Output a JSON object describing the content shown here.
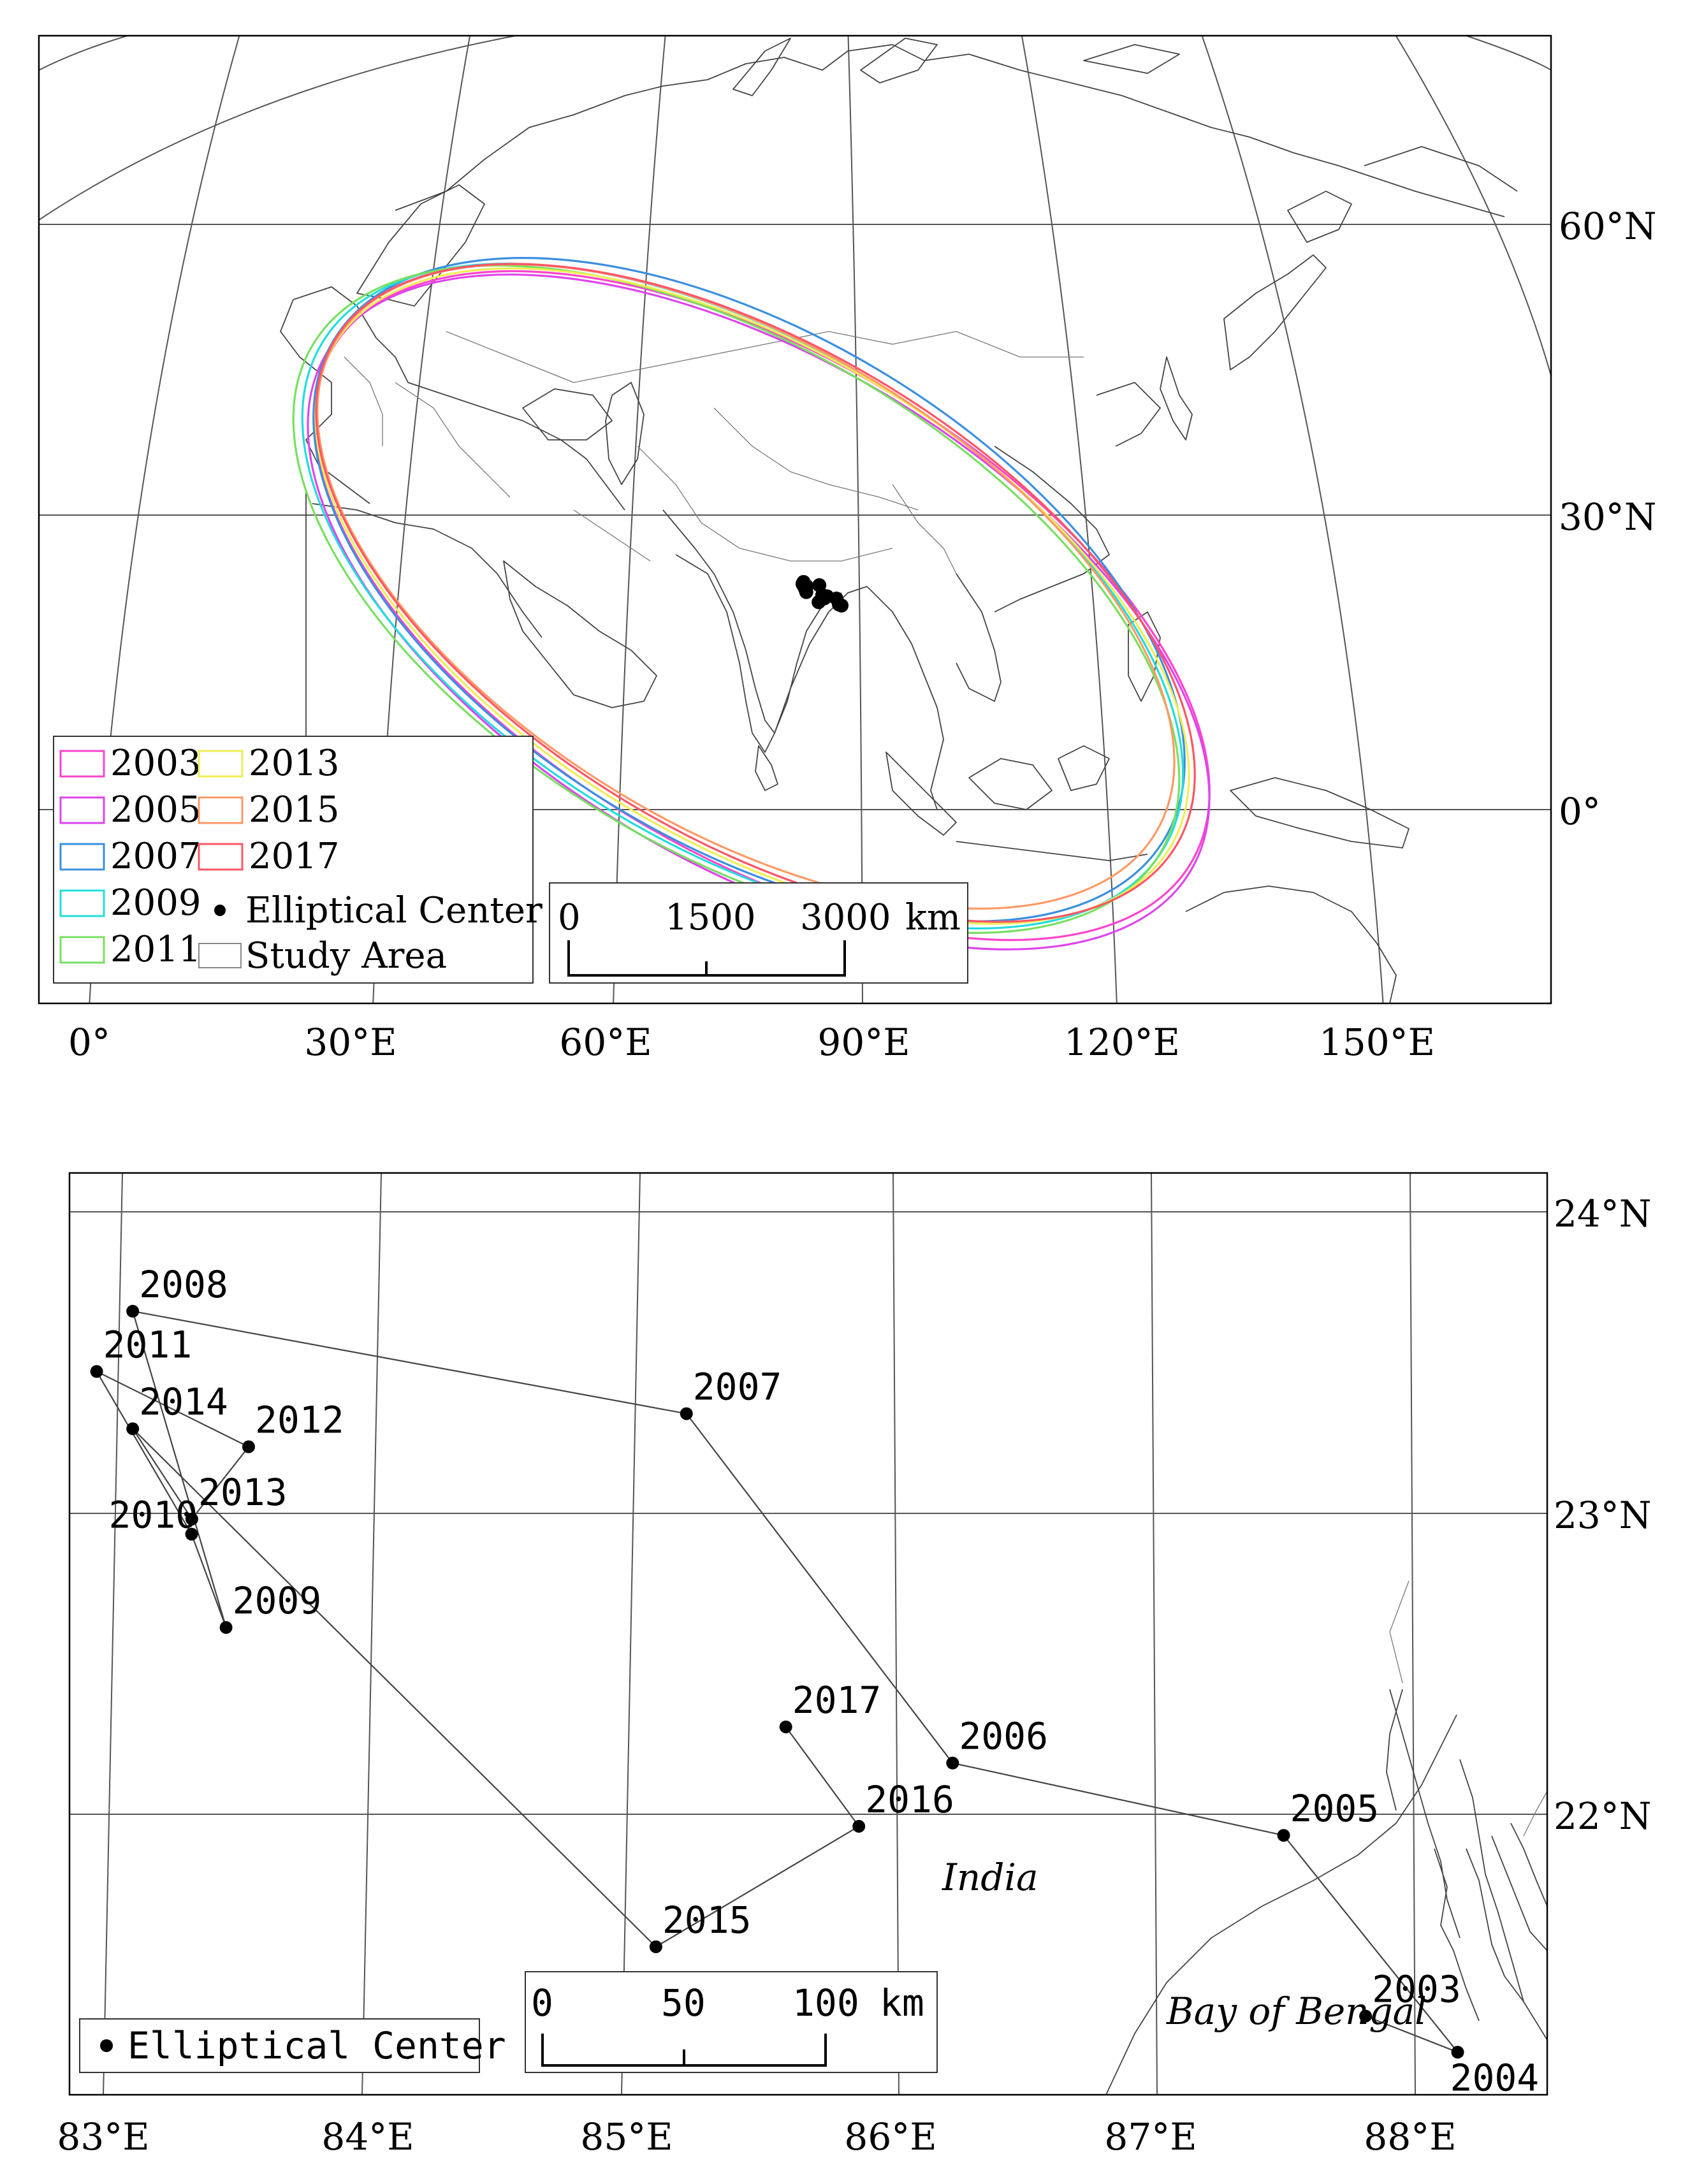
{
  "top_map": {
    "lon_labels": [
      "0°",
      "30°E",
      "60°E",
      "90°E",
      "120°E",
      "150°E"
    ],
    "lat_labels": [
      "60°N",
      "30°N",
      "0°"
    ],
    "legend": [
      {
        "label": "2003",
        "color": "#ff44cc"
      },
      {
        "label": "2005",
        "color": "#dd44ee"
      },
      {
        "label": "2007",
        "color": "#3a8fe0"
      },
      {
        "label": "2009",
        "color": "#22dddd"
      },
      {
        "label": "2011",
        "color": "#77e060"
      },
      {
        "label": "2013",
        "color": "#eeee55"
      },
      {
        "label": "2015",
        "color": "#ff9966"
      },
      {
        "label": "2017",
        "color": "#ff5566"
      }
    ],
    "legend_center": "Elliptical Center",
    "legend_study": "Study Area",
    "scale": {
      "l0": "0",
      "l1": "1500",
      "l2": "3000",
      "unit": "km"
    }
  },
  "bottom_map": {
    "lon_labels": [
      "83°E",
      "84°E",
      "85°E",
      "86°E",
      "87°E",
      "88°E"
    ],
    "lat_labels": [
      "24°N",
      "23°N",
      "22°N"
    ],
    "legend_center": "Elliptical Center",
    "scale": {
      "l0": "0",
      "l1": "50",
      "l2": "100",
      "unit": "km"
    },
    "place_india": "India",
    "place_bay": "Bay of Bengal",
    "centers": [
      {
        "year": "2003",
        "lon": 87.86,
        "lat": 21.33
      },
      {
        "year": "2004",
        "lon": 88.22,
        "lat": 21.21
      },
      {
        "year": "2005",
        "lon": 87.53,
        "lat": 21.93
      },
      {
        "year": "2006",
        "lon": 86.24,
        "lat": 22.17
      },
      {
        "year": "2007",
        "lon": 85.19,
        "lat": 23.33
      },
      {
        "year": "2008",
        "lon": 83.04,
        "lat": 23.67
      },
      {
        "year": "2009",
        "lon": 83.41,
        "lat": 22.62
      },
      {
        "year": "2010",
        "lon": 83.27,
        "lat": 22.93
      },
      {
        "year": "2011",
        "lon": 82.9,
        "lat": 23.47
      },
      {
        "year": "2012",
        "lon": 83.49,
        "lat": 23.22
      },
      {
        "year": "2013",
        "lon": 83.27,
        "lat": 22.98
      },
      {
        "year": "2014",
        "lon": 83.04,
        "lat": 23.28
      },
      {
        "year": "2015",
        "lon": 85.1,
        "lat": 21.56
      },
      {
        "year": "2016",
        "lon": 85.88,
        "lat": 21.96
      },
      {
        "year": "2017",
        "lon": 85.59,
        "lat": 22.29
      }
    ]
  }
}
